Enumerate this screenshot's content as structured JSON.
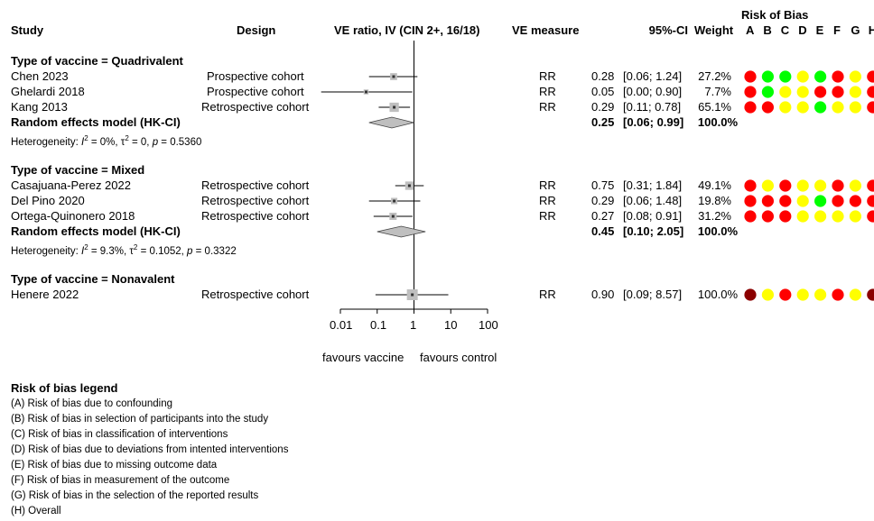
{
  "chart_data": {
    "type": "forest",
    "headers": {
      "study": "Study",
      "design": "Design",
      "effect": "VE ratio, IV (CIN 2+, 16/18)",
      "measure": "VE measure",
      "ci": "95%-CI",
      "weight": "Weight",
      "rob_title": "Risk of Bias",
      "rob_domains": [
        "A",
        "B",
        "C",
        "D",
        "E",
        "F",
        "G",
        "H"
      ]
    },
    "x_axis": {
      "scale": "log",
      "ticks": [
        "0.01",
        "0.1",
        "1",
        "10",
        "100"
      ],
      "tick_values": [
        0.01,
        0.1,
        1,
        10,
        100
      ],
      "null_line": 1
    },
    "favours": {
      "left": "favours vaccine",
      "right": "favours control"
    },
    "groups": [
      {
        "label": "Type of vaccine = Quadrivalent",
        "studies": [
          {
            "study": "Chen 2023",
            "design": "Prospective cohort",
            "measure": "RR",
            "est": 0.28,
            "lo": 0.06,
            "hi": 1.24,
            "est_text": "0.28",
            "ci_text": "[0.06; 1.24]",
            "weight": "27.2%",
            "w": 27.2,
            "rob": [
              "red",
              "green",
              "green",
              "yellow",
              "green",
              "red",
              "yellow",
              "red"
            ]
          },
          {
            "study": "Ghelardi 2018",
            "design": "Prospective cohort",
            "measure": "RR",
            "est": 0.05,
            "lo": 0.003,
            "hi": 0.9,
            "est_text": "0.05",
            "ci_text": "[0.00; 0.90]",
            "weight": "7.7%",
            "w": 7.7,
            "rob": [
              "red",
              "green",
              "yellow",
              "yellow",
              "red",
              "red",
              "yellow",
              "red"
            ]
          },
          {
            "study": "Kang 2013",
            "design": "Retrospective cohort",
            "measure": "RR",
            "est": 0.29,
            "lo": 0.11,
            "hi": 0.78,
            "est_text": "0.29",
            "ci_text": "[0.11; 0.78]",
            "weight": "65.1%",
            "w": 65.1,
            "rob": [
              "red",
              "red",
              "yellow",
              "yellow",
              "green",
              "yellow",
              "yellow",
              "red"
            ]
          }
        ],
        "pooled": {
          "label": "Random effects model (HK-CI)",
          "est": 0.25,
          "lo": 0.06,
          "hi": 0.99,
          "est_text": "0.25",
          "ci_text": "[0.06; 0.99]",
          "weight": "100.0%"
        },
        "heterogeneity": {
          "prefix": "Heterogeneity: ",
          "i2_label": "I",
          "i2_sup": "2",
          "i2_value": " = 0%, ",
          "tau_label": "τ",
          "tau_sup": "2",
          "tau_value": " = 0, ",
          "p_label": "p",
          "p_value": " = 0.5360"
        }
      },
      {
        "label": "Type of vaccine = Mixed",
        "studies": [
          {
            "study": "Casajuana-Perez 2022",
            "design": "Retrospective cohort",
            "measure": "RR",
            "est": 0.75,
            "lo": 0.31,
            "hi": 1.84,
            "est_text": "0.75",
            "ci_text": "[0.31; 1.84]",
            "weight": "49.1%",
            "w": 49.1,
            "rob": [
              "red",
              "yellow",
              "red",
              "yellow",
              "yellow",
              "red",
              "yellow",
              "red"
            ]
          },
          {
            "study": "Del Pino 2020",
            "design": "Retrospective cohort",
            "measure": "RR",
            "est": 0.29,
            "lo": 0.06,
            "hi": 1.48,
            "est_text": "0.29",
            "ci_text": "[0.06; 1.48]",
            "weight": "19.8%",
            "w": 19.8,
            "rob": [
              "red",
              "red",
              "red",
              "yellow",
              "green",
              "red",
              "red",
              "red"
            ]
          },
          {
            "study": "Ortega-Quinonero 2018",
            "design": "Retrospective cohort",
            "measure": "RR",
            "est": 0.27,
            "lo": 0.08,
            "hi": 0.91,
            "est_text": "0.27",
            "ci_text": "[0.08; 0.91]",
            "weight": "31.2%",
            "w": 31.2,
            "rob": [
              "red",
              "red",
              "red",
              "yellow",
              "yellow",
              "yellow",
              "yellow",
              "red"
            ]
          }
        ],
        "pooled": {
          "label": "Random effects model (HK-CI)",
          "est": 0.45,
          "lo": 0.1,
          "hi": 2.05,
          "est_text": "0.45",
          "ci_text": "[0.10; 2.05]",
          "weight": "100.0%"
        },
        "heterogeneity": {
          "prefix": "Heterogeneity: ",
          "i2_label": "I",
          "i2_sup": "2",
          "i2_value": " = 9.3%, ",
          "tau_label": "τ",
          "tau_sup": "2",
          "tau_value": " = 0.1052, ",
          "p_label": "p",
          "p_value": " = 0.3322"
        }
      },
      {
        "label": "Type of vaccine = Nonavalent",
        "studies": [
          {
            "study": "Henere 2022",
            "design": "Retrospective cohort",
            "measure": "RR",
            "est": 0.9,
            "lo": 0.09,
            "hi": 8.57,
            "est_text": "0.90",
            "ci_text": "[0.09; 8.57]",
            "weight": "100.0%",
            "w": 100.0,
            "rob": [
              "darkred",
              "yellow",
              "red",
              "yellow",
              "yellow",
              "red",
              "yellow",
              "darkred"
            ]
          }
        ]
      }
    ],
    "rob_colors": {
      "red": "#ff0000",
      "green": "#00ff00",
      "yellow": "#ffff00",
      "darkred": "#8b0000"
    },
    "legend": {
      "title": "Risk of bias legend",
      "items": [
        "(A) Risk of bias due to confounding",
        "(B) Risk of bias in selection of participants into the study",
        "(C) Risk of bias in classification of interventions",
        "(D) Risk of bias due to deviations from intented interventions",
        "(E) Risk of bias due to missing outcome data",
        "(F) Risk of bias in measurement of the outcome",
        "(G) Risk of bias in the selection of the reported results",
        "(H) Overall"
      ]
    }
  }
}
